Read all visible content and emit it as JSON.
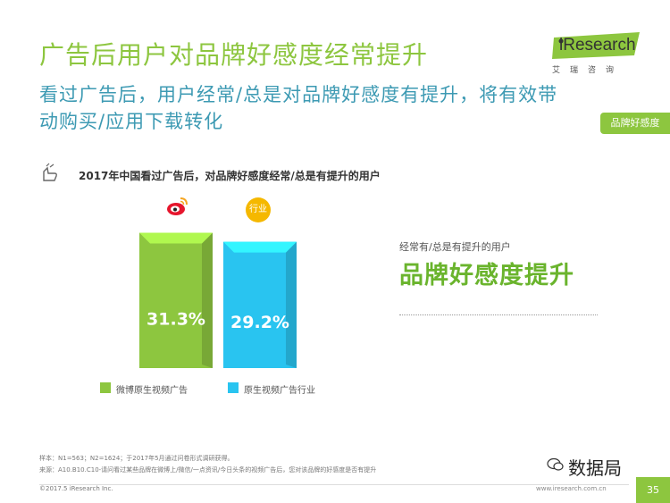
{
  "header": {
    "title": "广告后用户对品牌好感度经常提升",
    "subtitle_line1": "看过广告后，用户经常/总是对品牌好感度有提升，将有效带",
    "subtitle_line2": "动购买/应用下载转化",
    "logo_text": "iResearch",
    "logo_sub": "艾瑞咨询",
    "tag": "品牌好感度"
  },
  "chart_data": {
    "type": "bar",
    "title": "2017年中国看过广告后，对品牌好感度经常/总是有提升的用户",
    "categories": [
      "微博原生视频广告",
      "原生视频广告行业"
    ],
    "values": [
      31.3,
      29.2
    ],
    "value_labels": [
      "31.3%",
      "29.2%"
    ],
    "colors": [
      "#8dc63f",
      "#29c4f0"
    ],
    "badge_labels": [
      "",
      "行业"
    ],
    "legend": [
      {
        "label": "微博原生视频广告",
        "color": "#8dc63f"
      },
      {
        "label": "原生视频广告行业",
        "color": "#29c4f0"
      }
    ]
  },
  "insight": {
    "sub": "经常有/总是有提升的用户",
    "main": "品牌好感度提升"
  },
  "footer": {
    "note1": "样本：N1=563；N2=1624；于2017年5月通过问卷形式调研获得。",
    "note2": "来源：A10.B10.C10-请问看过某些品牌在微博上/微信/一点资讯/今日头条的视频广告后，您对该品牌的好感度是否有提升",
    "copyright": "©2017.5 iResearch Inc.",
    "site": "www.iresearch.com.cn",
    "page": "35",
    "watermark": "数据局"
  }
}
